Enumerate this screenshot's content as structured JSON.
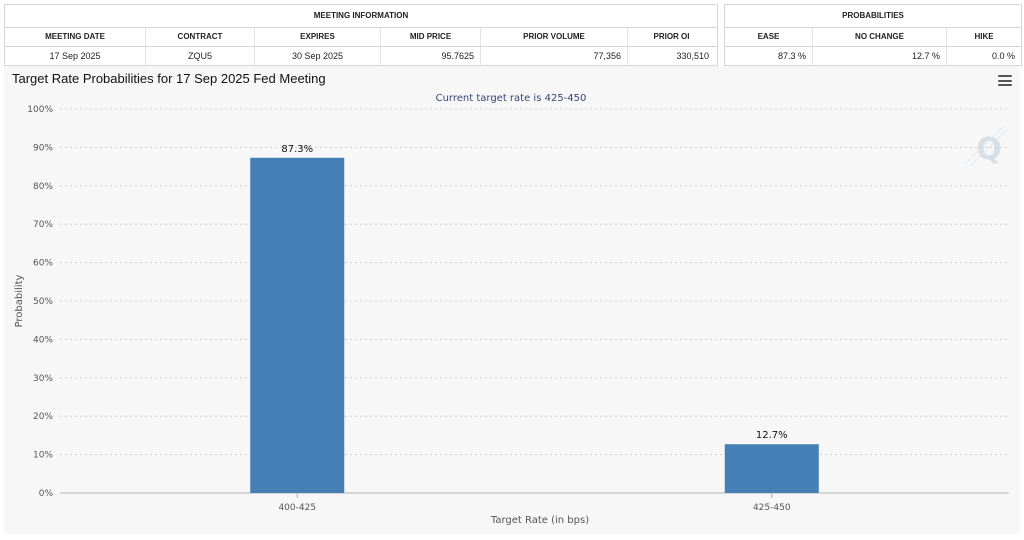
{
  "meeting_info": {
    "header": "MEETING INFORMATION",
    "columns": [
      "MEETING DATE",
      "CONTRACT",
      "EXPIRES",
      "MID PRICE",
      "PRIOR VOLUME",
      "PRIOR OI"
    ],
    "values": [
      "17 Sep 2025",
      "ZQU5",
      "30 Sep 2025",
      "95.7625",
      "77,356",
      "330,510"
    ]
  },
  "probabilities": {
    "header": "PROBABILITIES",
    "columns": [
      "EASE",
      "NO CHANGE",
      "HIKE"
    ],
    "values": [
      "87.3 %",
      "12.7 %",
      "0.0 %"
    ]
  },
  "chart_data": {
    "type": "bar",
    "title": "Target Rate Probabilities for 17 Sep 2025 Fed Meeting",
    "subtitle": "Current target rate is 425-450",
    "xlabel": "Target Rate (in bps)",
    "ylabel": "Probability",
    "categories": [
      "400-425",
      "425-450"
    ],
    "values": [
      87.3,
      12.7
    ],
    "data_labels": [
      "87.3%",
      "12.7%"
    ],
    "ylim": [
      0,
      100
    ],
    "yticks": [
      0,
      10,
      20,
      30,
      40,
      50,
      60,
      70,
      80,
      90,
      100
    ],
    "ytick_suffix": "%",
    "grid": true,
    "bar_color": "#4480b5",
    "subtitle_color": "#34467a"
  }
}
